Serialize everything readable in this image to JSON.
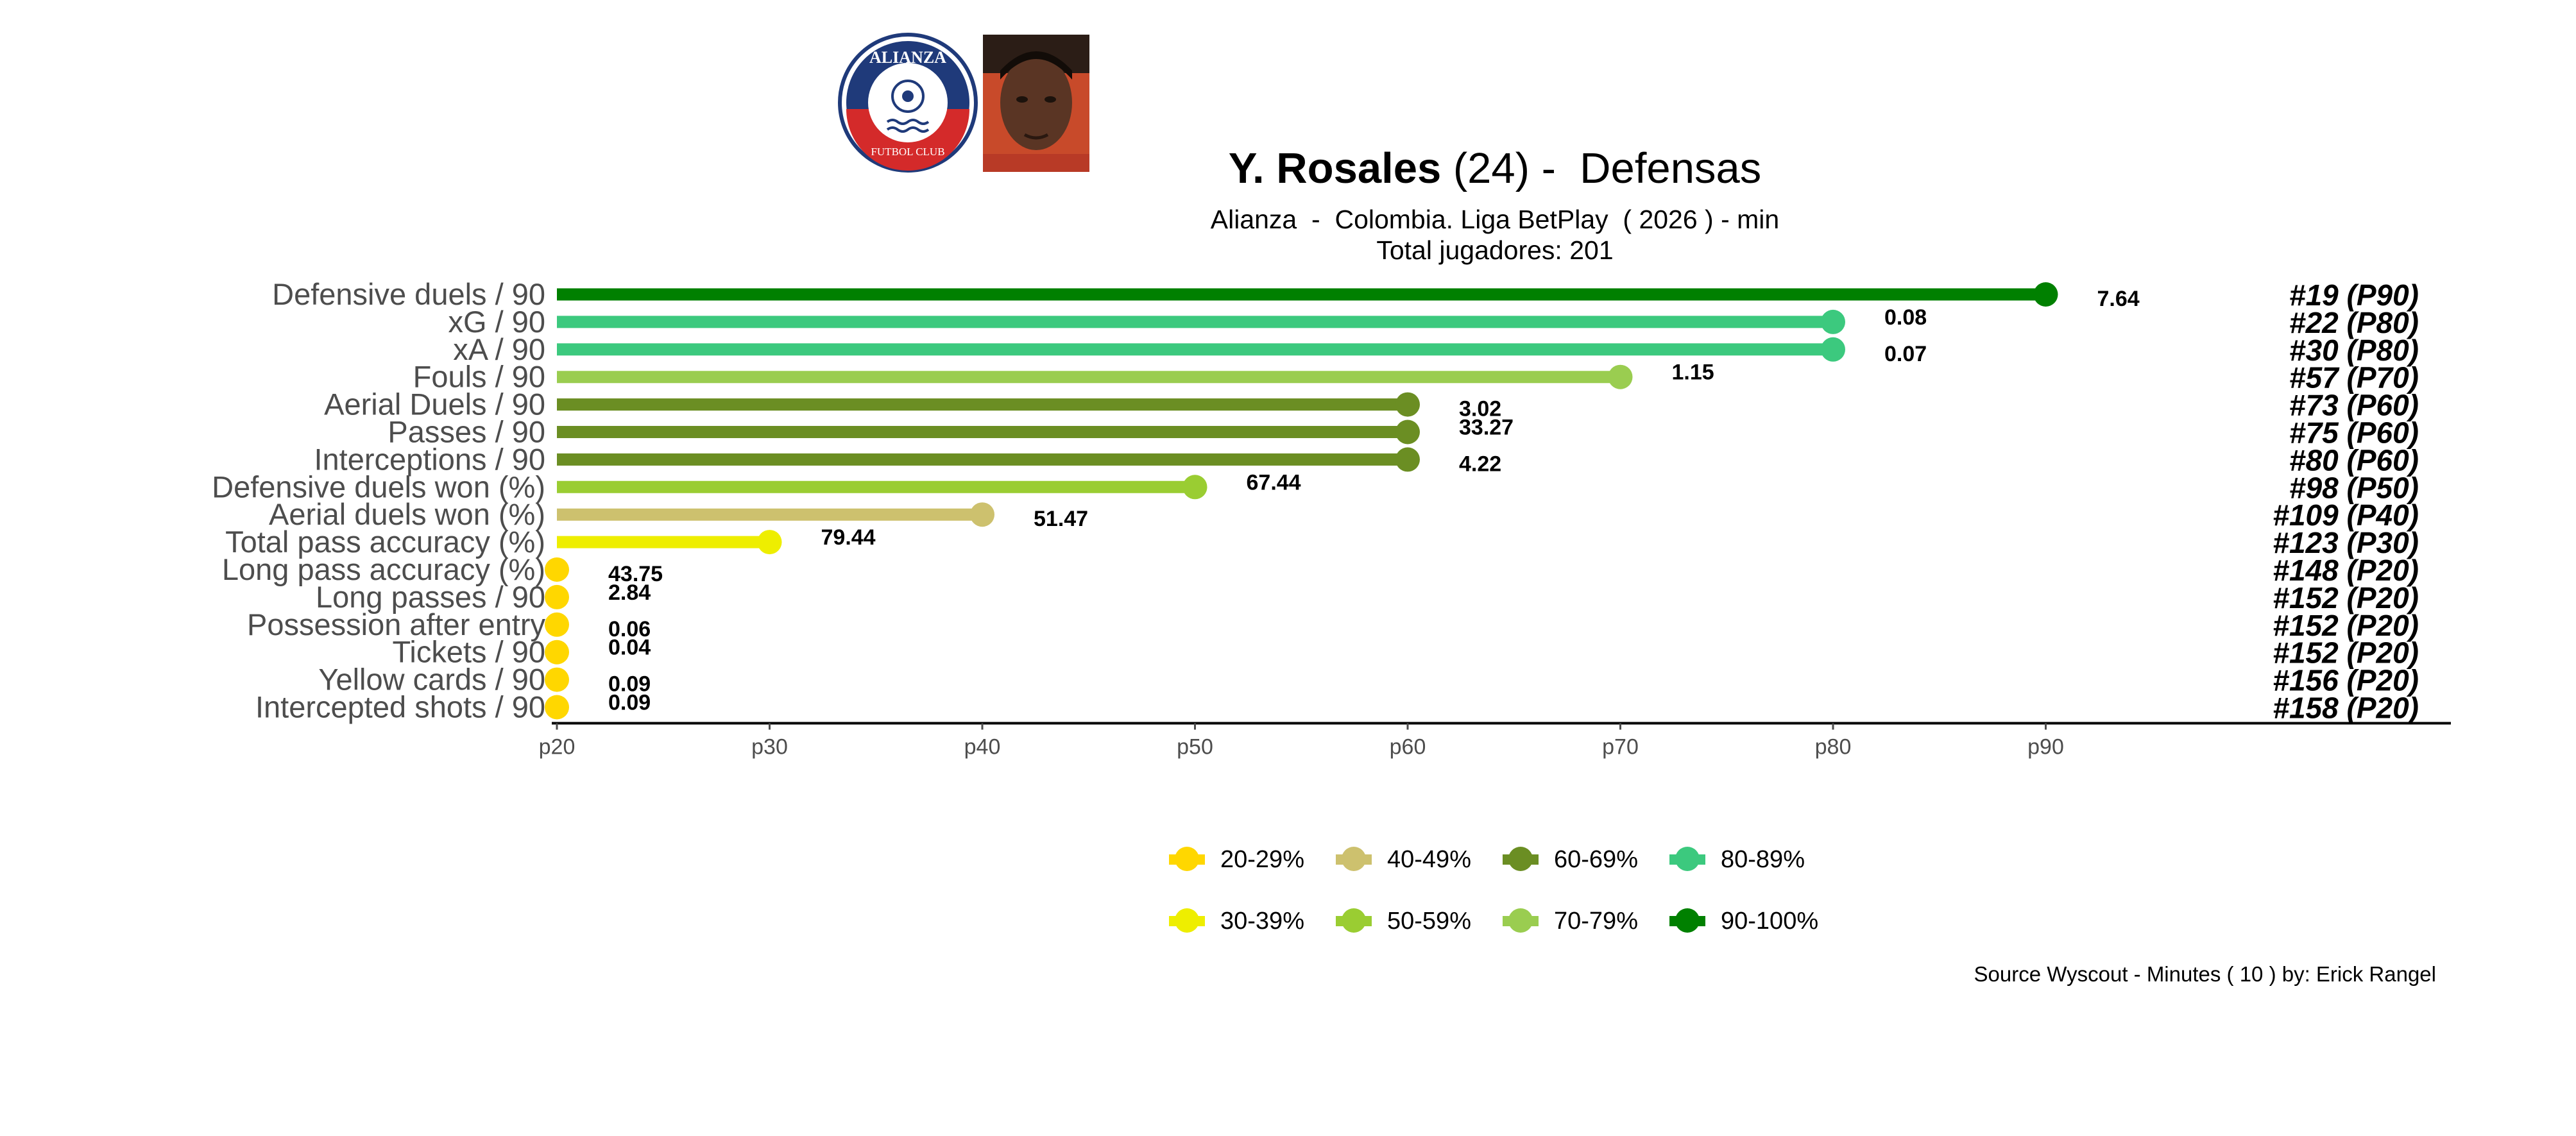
{
  "header": {
    "player_name": "Y. Rosales",
    "player_age": "(24)",
    "separator": " -  ",
    "position": "Defensas",
    "subtitle": "Alianza  -  Colombia. Liga BetPlay  ( 2026 ) - min",
    "total_players": "Total jugadores:  201"
  },
  "logos": {
    "club_name": "ALIANZA",
    "club_tagline": "FUTBOL CLUB",
    "club_icon": "soccer-ball-icon",
    "photo_icon": "player-photo"
  },
  "chart_data": {
    "type": "lollipop",
    "x_axis": {
      "ticks": [
        "p20",
        "p30",
        "p40",
        "p50",
        "p60",
        "p70",
        "p80",
        "p90"
      ],
      "range": [
        20,
        109
      ]
    },
    "metrics": [
      {
        "label": "Defensive duels / 90",
        "percentile": 90,
        "value": "7.64",
        "rank": "#19 (P90)",
        "color": "#008000"
      },
      {
        "label": "xG / 90",
        "percentile": 80,
        "value": "0.08",
        "rank": "#22 (P80)",
        "color": "#3CC97E"
      },
      {
        "label": "xA / 90",
        "percentile": 80,
        "value": "0.07",
        "rank": "#30 (P80)",
        "color": "#3CC97E"
      },
      {
        "label": "Fouls / 90",
        "percentile": 70,
        "value": "1.15",
        "rank": "#57 (P70)",
        "color": "#9ACD50"
      },
      {
        "label": "Aerial Duels / 90",
        "percentile": 60,
        "value": "3.02",
        "rank": "#73 (P60)",
        "color": "#6B8E23"
      },
      {
        "label": "Passes / 90",
        "percentile": 60,
        "value": "33.27",
        "rank": "#75 (P60)",
        "color": "#6B8E23"
      },
      {
        "label": "Interceptions / 90",
        "percentile": 60,
        "value": "4.22",
        "rank": "#80 (P60)",
        "color": "#6B8E23"
      },
      {
        "label": "Defensive duels won (%)",
        "percentile": 50,
        "value": "67.44",
        "rank": "#98 (P50)",
        "color": "#9ACD32"
      },
      {
        "label": "Aerial duels won (%)",
        "percentile": 40,
        "value": "51.47",
        "rank": "#109 (P40)",
        "color": "#CDC16E"
      },
      {
        "label": "Total pass accuracy (%)",
        "percentile": 30,
        "value": "79.44",
        "rank": "#123 (P30)",
        "color": "#EEEE00"
      },
      {
        "label": "Long pass accuracy (%)",
        "percentile": 20,
        "value": "43.75",
        "rank": "#148 (P20)",
        "color": "#FFD700"
      },
      {
        "label": "Long passes / 90",
        "percentile": 20,
        "value": "2.84",
        "rank": "#152 (P20)",
        "color": "#FFD700"
      },
      {
        "label": "Possession after entry",
        "percentile": 20,
        "value": "0.06",
        "rank": "#152 (P20)",
        "color": "#FFD700"
      },
      {
        "label": "Tickets / 90",
        "percentile": 20,
        "value": "0.04",
        "rank": "#152 (P20)",
        "color": "#FFD700"
      },
      {
        "label": "Yellow cards / 90",
        "percentile": 20,
        "value": "0.09",
        "rank": "#156 (P20)",
        "color": "#FFD700"
      },
      {
        "label": "Intercepted shots / 90",
        "percentile": 20,
        "value": "0.09",
        "rank": "#158 (P20)",
        "color": "#FFD700"
      }
    ],
    "legend": [
      {
        "label": "20-29%",
        "color": "#FFD700"
      },
      {
        "label": "40-49%",
        "color": "#CDC16E"
      },
      {
        "label": "60-69%",
        "color": "#6B8E23"
      },
      {
        "label": "80-89%",
        "color": "#3CC97E"
      },
      {
        "label": "30-39%",
        "color": "#EEEE00"
      },
      {
        "label": "50-59%",
        "color": "#9ACD32"
      },
      {
        "label": "70-79%",
        "color": "#9ACD50"
      },
      {
        "label": "90-100%",
        "color": "#008000"
      }
    ]
  },
  "footer": {
    "source": "Source Wyscout - Minutes ( 10 ) by: Erick Rangel"
  }
}
